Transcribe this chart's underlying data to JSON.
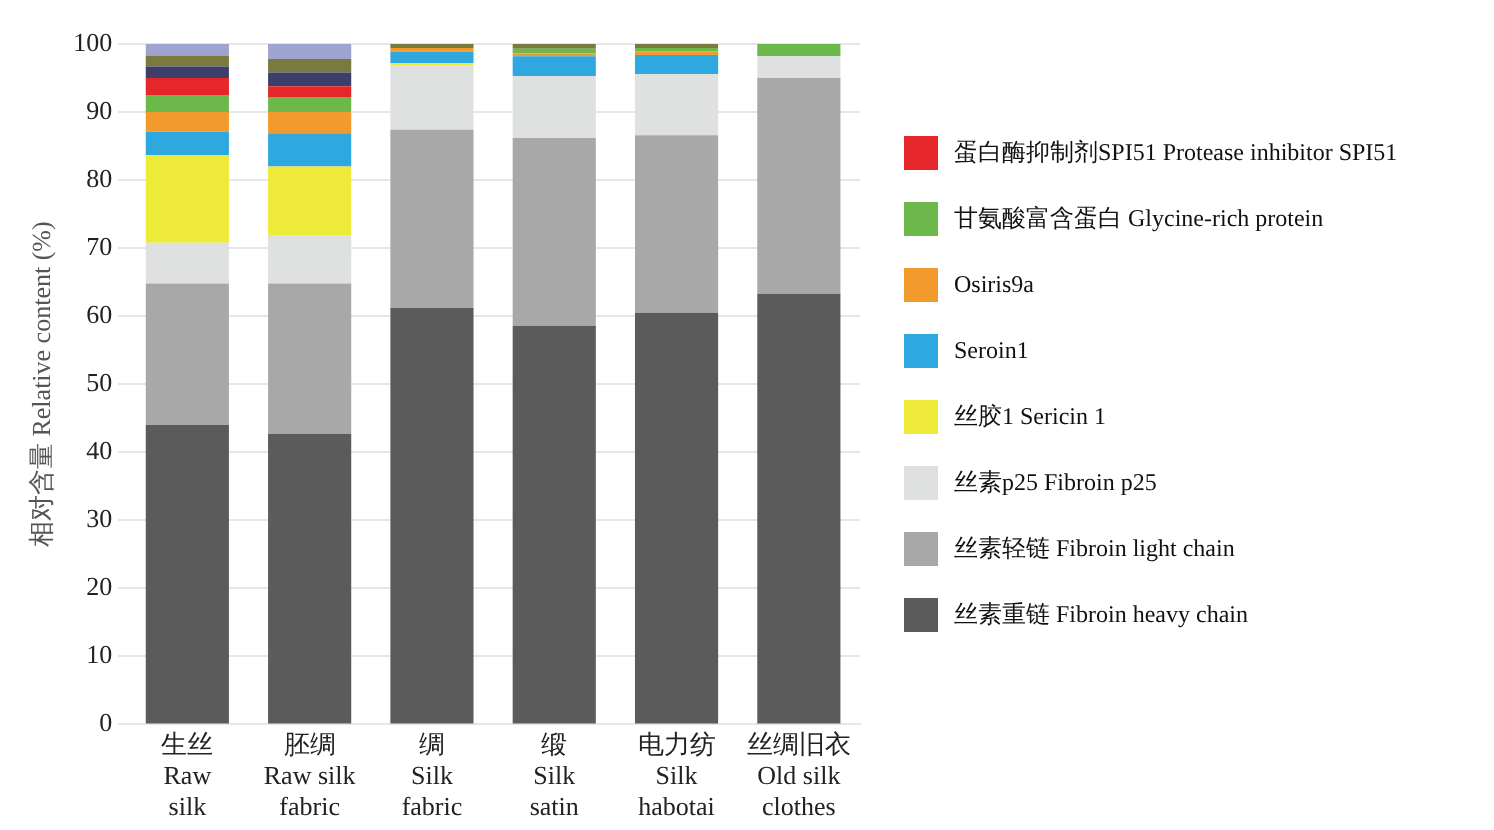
{
  "chart_data": {
    "type": "bar",
    "stacked": true,
    "ylabel": "相对含量 Relative content (%)",
    "categories": [
      "生丝\nRaw\nsilk",
      "胚绸\nRaw silk\nfabric",
      "绸\nSilk\nfabric",
      "缎\nSilk\nsatin",
      "电力纺\nSilk\nhabotai",
      "丝绸旧衣\nOld silk\nclothes"
    ],
    "series": [
      {
        "name": "丝素重链 Fibroin heavy chain",
        "color": "#5b5b5b",
        "values": [
          44,
          42.7,
          61.2,
          58.6,
          60.5,
          63.3
        ]
      },
      {
        "name": "丝素轻链 Fibroin light chain",
        "color": "#a8a8a8",
        "values": [
          20.8,
          22.1,
          26.2,
          27.6,
          26.1,
          31.7
        ]
      },
      {
        "name": "丝素p25 Fibroin p25",
        "color": "#dfe0e0",
        "values": [
          6,
          7,
          9.5,
          9.1,
          9,
          3.2
        ]
      },
      {
        "name": "丝胶1 Sericin 1",
        "color": "#eeea3a",
        "values": [
          12.9,
          10.2,
          0.3,
          0,
          0,
          0
        ]
      },
      {
        "name": "Seroin1",
        "color": "#2ea8de",
        "values": [
          3.4,
          4.9,
          1.7,
          2.9,
          2.8,
          0
        ]
      },
      {
        "name": "Osiris9a",
        "color": "#f39a2c",
        "values": [
          2.9,
          3.1,
          0.5,
          0.4,
          0.5,
          0
        ]
      },
      {
        "name": "甘氨酸富含蛋白 Glycine-rich protein",
        "color": "#6cb84a",
        "values": [
          2.5,
          2.2,
          0,
          0.7,
          0.5,
          1.8
        ]
      },
      {
        "name": "蛋白酶抑制剂SPI51 Protease inhibitor SPI51",
        "color": "#e5262b",
        "values": [
          2.5,
          1.6,
          0,
          0,
          0,
          0
        ]
      },
      {
        "color": "#3d3f6a",
        "values": [
          1.7,
          2,
          0,
          0,
          0,
          0
        ]
      },
      {
        "color": "#7b7a3e",
        "values": [
          1.6,
          2,
          0.6,
          0.7,
          0.6,
          0
        ]
      },
      {
        "color": "#9fa3cf",
        "values": [
          1.7,
          2.2,
          0,
          0,
          0,
          0
        ]
      }
    ],
    "ylim": [
      0,
      100
    ],
    "yticks": [
      0,
      10,
      20,
      30,
      40,
      50,
      60,
      70,
      80,
      90,
      100
    ],
    "grid": "y",
    "legend": "right"
  }
}
